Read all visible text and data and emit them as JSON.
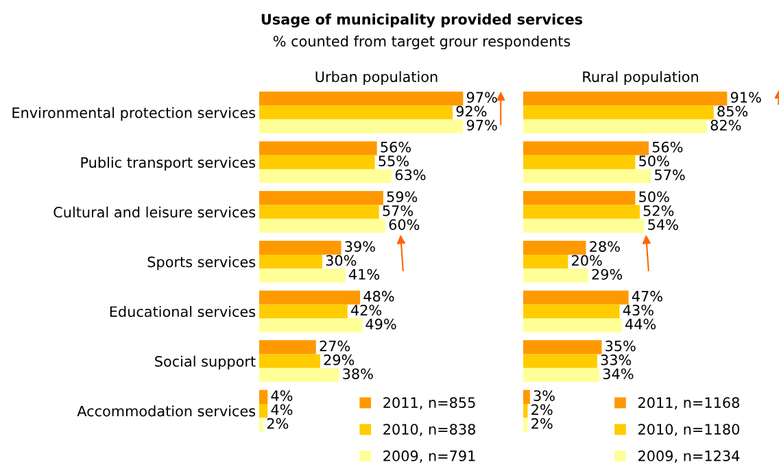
{
  "chart_data": [
    {
      "type": "bar",
      "orientation": "horizontal",
      "title": "Usage of municipality provided services",
      "subtitle": "% counted from target grour respondents",
      "xlabel": "Urban population",
      "categories": [
        "Environmental protection services",
        "Public transport services",
        "Cultural and leisure services",
        "Sports services",
        "Educational services",
        "Social support",
        "Accommodation services"
      ],
      "series": [
        {
          "name": "2011, n=855",
          "color": "#ff9900",
          "values": [
            97,
            56,
            59,
            39,
            48,
            27,
            4
          ],
          "value_labels": [
            "97%",
            "56%",
            "59%",
            "39%",
            "48%",
            "27%",
            "4%"
          ]
        },
        {
          "name": "2010, n=838",
          "color": "#ffcc00",
          "values": [
            92,
            55,
            57,
            30,
            42,
            29,
            4
          ],
          "value_labels": [
            "92%",
            "55%",
            "57%",
            "30%",
            "42%",
            "29%",
            "4%"
          ]
        },
        {
          "name": "2009, n=791",
          "color": "#ffff99",
          "values": [
            97,
            63,
            60,
            41,
            49,
            38,
            2
          ],
          "value_labels": [
            "97%",
            "63%",
            "60%",
            "41%",
            "49%",
            "38%",
            "2%"
          ]
        }
      ],
      "legend": "bottom right",
      "grid": false,
      "tick_labels": "y"
    },
    {
      "type": "bar",
      "orientation": "horizontal",
      "xlabel": "Rural population",
      "categories": [
        null,
        null,
        null,
        null,
        null,
        null,
        null
      ],
      "series": [
        {
          "name": "2011, n=1168",
          "color": "#ff9900",
          "values": [
            91,
            56,
            50,
            28,
            47,
            35,
            3
          ],
          "value_labels": [
            "91%",
            "56%",
            "50%",
            "28%",
            "47%",
            "35%",
            "3%"
          ]
        },
        {
          "name": "2010, n=1180",
          "color": "#ffcc00",
          "values": [
            85,
            50,
            52,
            20,
            43,
            33,
            2
          ],
          "value_labels": [
            "85%",
            "50%",
            "52%",
            "20%",
            "43%",
            "33%",
            "2%"
          ]
        },
        {
          "name": "2009, n=1234",
          "color": "#ffff99",
          "values": [
            82,
            57,
            54,
            29,
            44,
            34,
            2
          ],
          "value_labels": [
            "82%",
            "57%",
            "54%",
            "29%",
            "44%",
            "34%",
            "2%"
          ]
        }
      ],
      "legend": "bottom right",
      "grid": false,
      "tick_labels": false
    }
  ]
}
